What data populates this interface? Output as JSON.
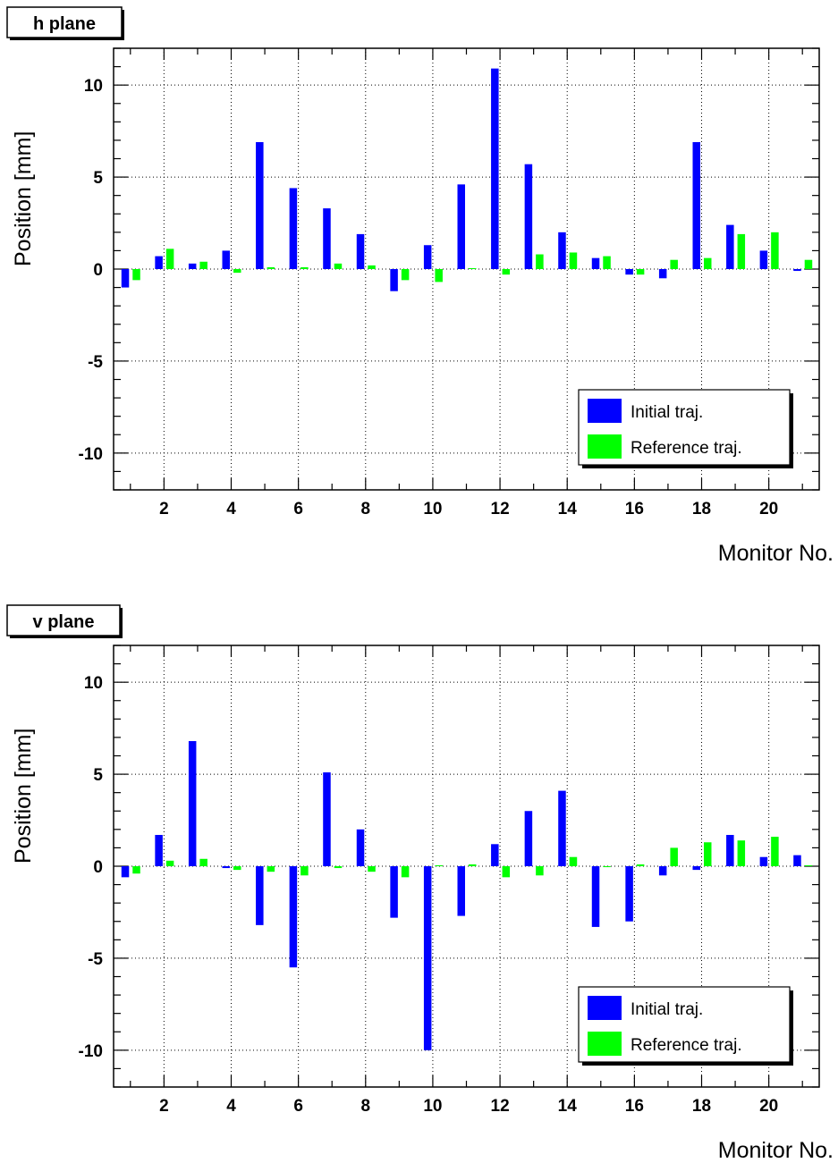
{
  "chart_data": [
    {
      "type": "bar",
      "title": "h plane",
      "xlabel": "Monitor No.",
      "ylabel": "Position [mm]",
      "ylim": [
        -12,
        12
      ],
      "xlim": [
        0.5,
        21.5
      ],
      "xticks": [
        2,
        4,
        6,
        8,
        10,
        12,
        14,
        16,
        18,
        20
      ],
      "yticks": [
        -10,
        -5,
        0,
        5,
        10
      ],
      "grid": true,
      "legend_position": "bottom-right",
      "categories": [
        1,
        2,
        3,
        4,
        5,
        6,
        7,
        8,
        9,
        10,
        11,
        12,
        13,
        14,
        15,
        16,
        17,
        18,
        19,
        20,
        21
      ],
      "series": [
        {
          "name": "Initial traj.",
          "color": "#0000ff",
          "values": [
            -1.0,
            0.7,
            0.3,
            1.0,
            6.9,
            4.4,
            3.3,
            1.9,
            -1.2,
            1.3,
            4.6,
            10.9,
            5.7,
            2.0,
            0.6,
            -0.3,
            -0.5,
            6.9,
            2.4,
            1.0,
            -0.1
          ]
        },
        {
          "name": "Reference traj.",
          "color": "#00ff00",
          "values": [
            -0.6,
            1.1,
            0.4,
            -0.2,
            0.1,
            0.1,
            0.3,
            0.2,
            -0.6,
            -0.7,
            0.05,
            -0.3,
            0.8,
            0.9,
            0.7,
            -0.3,
            0.5,
            0.6,
            1.9,
            2.0,
            0.5
          ]
        }
      ]
    },
    {
      "type": "bar",
      "title": "v plane",
      "xlabel": "Monitor No.",
      "ylabel": "Position [mm]",
      "ylim": [
        -12,
        12
      ],
      "xlim": [
        0.5,
        21.5
      ],
      "xticks": [
        2,
        4,
        6,
        8,
        10,
        12,
        14,
        16,
        18,
        20
      ],
      "yticks": [
        -10,
        -5,
        0,
        5,
        10
      ],
      "grid": true,
      "legend_position": "bottom-right",
      "categories": [
        1,
        2,
        3,
        4,
        5,
        6,
        7,
        8,
        9,
        10,
        11,
        12,
        13,
        14,
        15,
        16,
        17,
        18,
        19,
        20,
        21
      ],
      "series": [
        {
          "name": "Initial traj.",
          "color": "#0000ff",
          "values": [
            -0.6,
            1.7,
            6.8,
            -0.1,
            -3.2,
            -5.5,
            5.1,
            2.0,
            -2.8,
            -10.0,
            -2.7,
            1.2,
            3.0,
            4.1,
            -3.3,
            -3.0,
            -0.5,
            -0.2,
            1.7,
            0.5,
            0.6
          ]
        },
        {
          "name": "Reference traj.",
          "color": "#00ff00",
          "values": [
            -0.4,
            0.3,
            0.4,
            -0.2,
            -0.3,
            -0.5,
            -0.1,
            -0.3,
            -0.6,
            0.05,
            0.1,
            -0.6,
            -0.5,
            0.5,
            -0.05,
            0.1,
            1.0,
            1.3,
            1.4,
            1.6,
            0.05
          ]
        }
      ]
    }
  ]
}
